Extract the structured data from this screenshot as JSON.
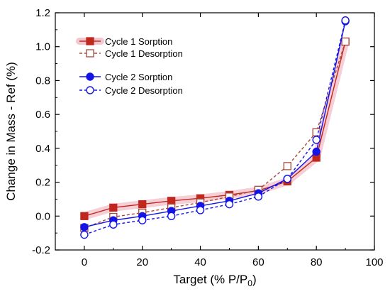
{
  "chart_data": {
    "type": "line",
    "title": "",
    "xlabel": "Target (% P/P",
    "xlabel_sub": "0",
    "xlabel_close": ")",
    "ylabel": "Change in Mass - Ref (%)",
    "xlim": [
      -10,
      100
    ],
    "ylim": [
      -0.2,
      1.2
    ],
    "x_ticks": [
      0,
      20,
      40,
      60,
      80,
      100
    ],
    "y_ticks": [
      -0.2,
      0.0,
      0.2,
      0.4,
      0.6,
      0.8,
      1.0,
      1.2
    ],
    "y_tick_labels": [
      "-0.2",
      "0.0",
      "0.2",
      "0.4",
      "0.6",
      "0.8",
      "1.0",
      "1.2"
    ],
    "x": [
      0,
      10,
      20,
      30,
      40,
      50,
      60,
      70,
      80,
      90
    ],
    "legend_position": "top-left",
    "grid": false,
    "series": [
      {
        "name": "Cycle 1 Sorption",
        "color": "#c0281e",
        "marker": "square-filled",
        "dash": "solid",
        "values": [
          0.0,
          0.05,
          0.07,
          0.09,
          0.105,
          0.125,
          0.15,
          0.205,
          0.345,
          1.03
        ]
      },
      {
        "name": "Cycle 1 Desorption",
        "color": "#a6483c",
        "marker": "square-open",
        "dash": "dashed",
        "values": [
          -0.07,
          -0.005,
          0.02,
          0.05,
          0.08,
          0.115,
          0.155,
          0.295,
          0.495,
          1.03
        ]
      },
      {
        "name": "Cycle 2 Sorption",
        "color": "#1414e6",
        "marker": "circle-filled",
        "dash": "solid",
        "values": [
          -0.065,
          -0.025,
          0.0,
          0.03,
          0.06,
          0.09,
          0.135,
          0.22,
          0.38,
          1.15
        ]
      },
      {
        "name": "Cycle 2 Desorption",
        "color": "#1414e6",
        "marker": "circle-open",
        "dash": "dashed",
        "values": [
          -0.11,
          -0.05,
          -0.025,
          0.0,
          0.035,
          0.07,
          0.115,
          0.22,
          0.45,
          1.155
        ]
      }
    ]
  }
}
